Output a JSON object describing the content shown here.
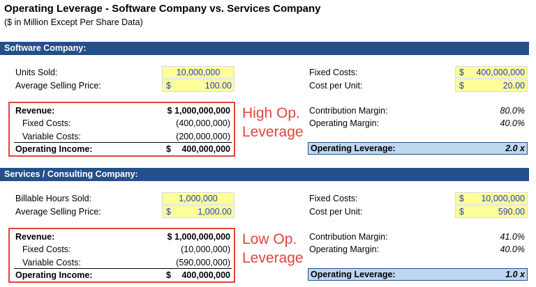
{
  "header": {
    "title": "Operating Leverage - Software Company vs. Services Company",
    "subtitle": "($ in Million Except Per Share Data)"
  },
  "sections": [
    {
      "title": "Software Company:",
      "inputs_left": [
        {
          "label": "Units Sold:",
          "value": "10,000,000"
        },
        {
          "label": "Average Selling Price:",
          "currency": "$",
          "value": "100.00"
        }
      ],
      "inputs_right": [
        {
          "label": "Fixed Costs:",
          "currency": "$",
          "value": "400,000,000"
        },
        {
          "label": "Cost per Unit:",
          "currency": "$",
          "value": "20.00"
        }
      ],
      "income": [
        {
          "label": "Revenue:",
          "value": "$ 1,000,000,000"
        },
        {
          "label": "Fixed Costs:",
          "value": "(400,000,000)"
        },
        {
          "label": "Variable Costs:",
          "value": "(200,000,000)"
        },
        {
          "label": "Operating Income:",
          "currency": "$",
          "value": "400,000,000"
        }
      ],
      "note": [
        "High Op.",
        "Leverage"
      ],
      "margins": [
        {
          "label": "Contribution Margin:",
          "value": "80.0%"
        },
        {
          "label": "Operating Margin:",
          "value": "40.0%"
        }
      ],
      "leverage": {
        "label": "Operating Leverage:",
        "value": "2.0 x"
      }
    },
    {
      "title": "Services / Consulting Company:",
      "inputs_left": [
        {
          "label": "Billable Hours Sold:",
          "value": "1,000,000"
        },
        {
          "label": "Average Selling Price:",
          "currency": "$",
          "value": "1,000.00"
        }
      ],
      "inputs_right": [
        {
          "label": "Fixed Costs:",
          "currency": "$",
          "value": "10,000,000"
        },
        {
          "label": "Cost per Unit:",
          "currency": "$",
          "value": "590.00"
        }
      ],
      "income": [
        {
          "label": "Revenue:",
          "value": "$ 1,000,000,000"
        },
        {
          "label": "Fixed Costs:",
          "value": "(10,000,000)"
        },
        {
          "label": "Variable Costs:",
          "value": "(590,000,000)"
        },
        {
          "label": "Operating Income:",
          "currency": "$",
          "value": "400,000,000"
        }
      ],
      "note": [
        "Low Op.",
        "Leverage"
      ],
      "margins": [
        {
          "label": "Contribution Margin:",
          "value": "41.0%"
        },
        {
          "label": "Operating Margin:",
          "value": "40.0%"
        }
      ],
      "leverage": {
        "label": "Operating Leverage:",
        "value": "1.0 x"
      }
    }
  ]
}
